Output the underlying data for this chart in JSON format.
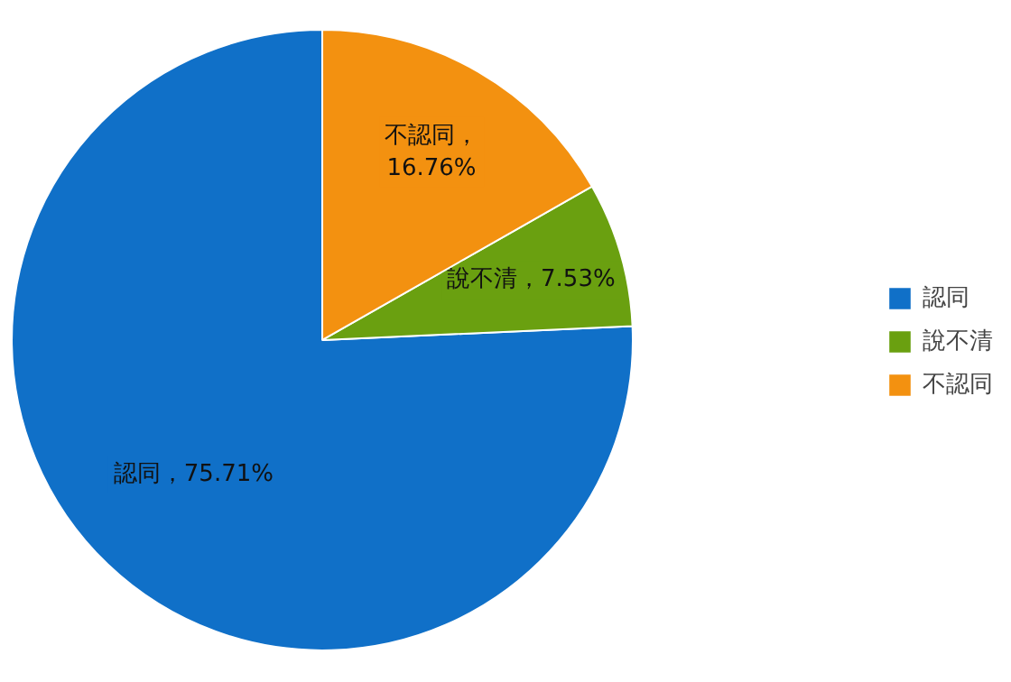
{
  "chart_data": {
    "type": "pie",
    "categories": [
      "認同",
      "說不清",
      "不認同"
    ],
    "values": [
      75.71,
      7.53,
      16.76
    ],
    "colors": [
      "#1070c8",
      "#6aa010",
      "#f39110"
    ],
    "value_labels": [
      "認同，75.71%",
      "說不清，7.53%",
      "不認同，\n16.76%"
    ],
    "legend": "right"
  }
}
